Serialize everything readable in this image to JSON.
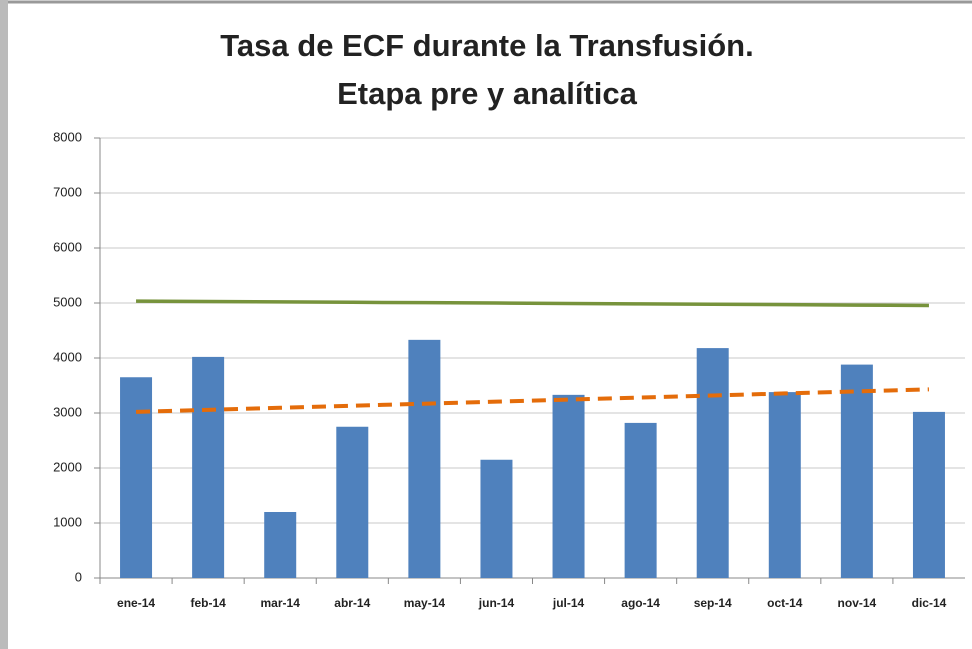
{
  "chart_data": {
    "type": "bar",
    "title": [
      "Tasa de ECF durante la Transfusión.",
      "Etapa pre y analítica"
    ],
    "categories": [
      "ene-14",
      "feb-14",
      "mar-14",
      "abr-14",
      "may-14",
      "jun-14",
      "jul-14",
      "ago-14",
      "sep-14",
      "oct-14",
      "nov-14",
      "dic-14"
    ],
    "series": [
      {
        "type": "bar",
        "color": "#4f81bd",
        "values": [
          3650,
          4020,
          1200,
          2750,
          4330,
          2150,
          3330,
          2820,
          4180,
          3380,
          3880,
          3020
        ]
      },
      {
        "type": "line",
        "color": "#77933c",
        "dashed": false,
        "values": [
          5035,
          5028,
          5020,
          5013,
          5006,
          4999,
          4991,
          4984,
          4977,
          4970,
          4962,
          4955
        ]
      },
      {
        "type": "line",
        "color": "#e46c0a",
        "dashed": true,
        "values": [
          3020,
          3057,
          3095,
          3132,
          3169,
          3206,
          3244,
          3281,
          3318,
          3356,
          3393,
          3430
        ]
      }
    ],
    "ylim": [
      0,
      8000
    ],
    "yticks": [
      0,
      1000,
      2000,
      3000,
      4000,
      5000,
      6000,
      7000,
      8000
    ],
    "grid": true
  }
}
